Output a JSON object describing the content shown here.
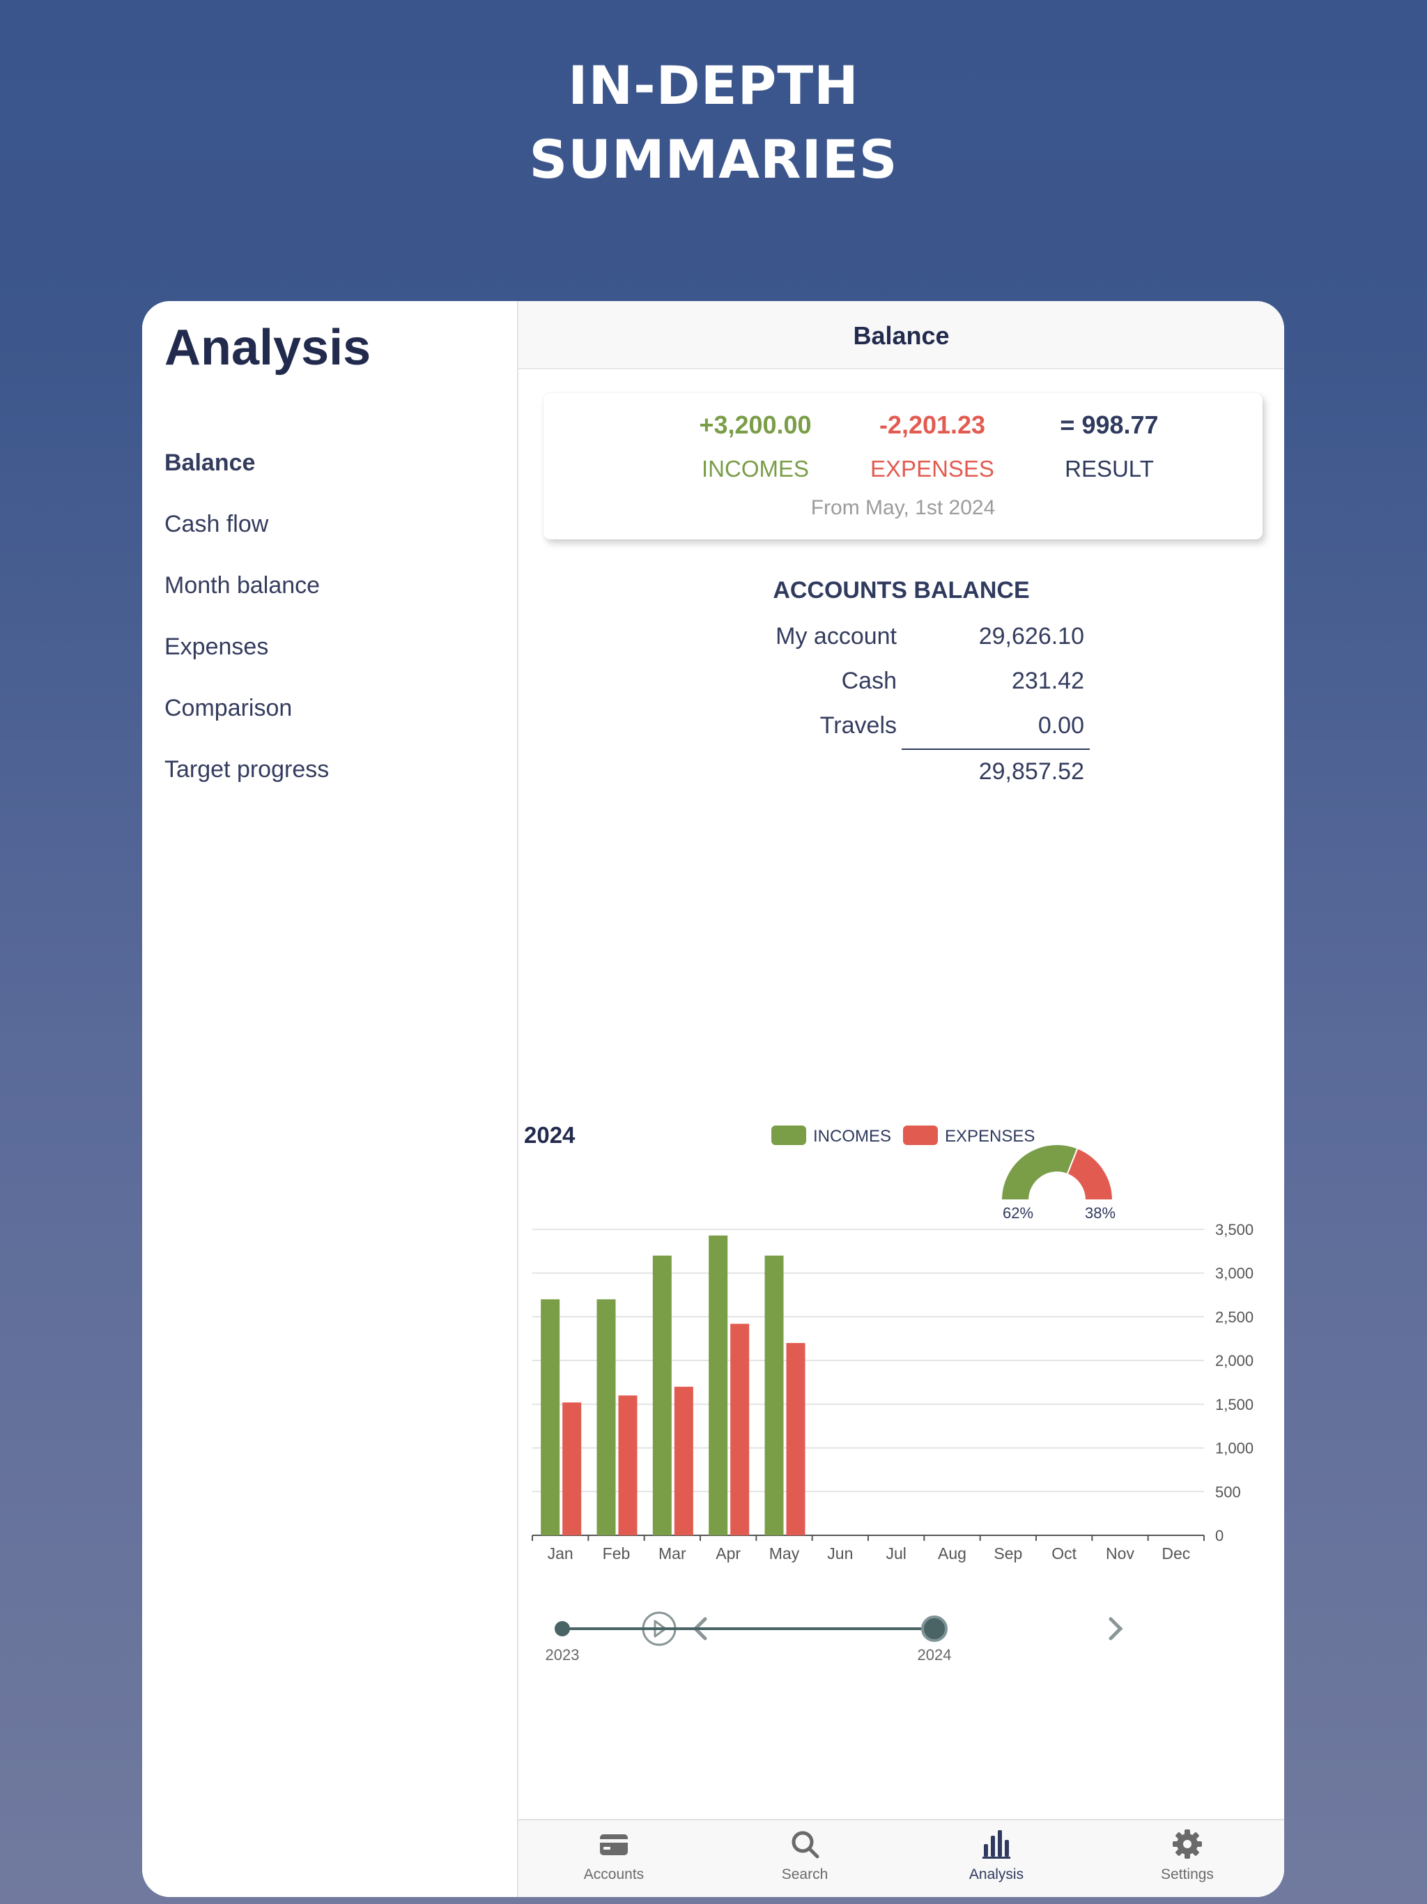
{
  "promo": {
    "line1": "IN-DEPTH",
    "line2": "SUMMARIES"
  },
  "sidebar": {
    "title": "Analysis",
    "items": [
      {
        "label": "Balance",
        "active": true
      },
      {
        "label": "Cash flow"
      },
      {
        "label": "Month balance"
      },
      {
        "label": "Expenses"
      },
      {
        "label": "Comparison"
      },
      {
        "label": "Target progress"
      }
    ]
  },
  "navbar": {
    "title": "Balance"
  },
  "summary": {
    "incomes_value": "+3,200.00",
    "incomes_label": "INCOMES",
    "expenses_value": "-2,201.23",
    "expenses_label": "EXPENSES",
    "result_value": "= 998.77",
    "result_label": "RESULT",
    "from_date": "From May, 1st 2024"
  },
  "accounts": {
    "title": "ACCOUNTS BALANCE",
    "rows": [
      {
        "name": "My account",
        "amount": "29,626.10"
      },
      {
        "name": "Cash",
        "amount": "231.42"
      },
      {
        "name": "Travels",
        "amount": "0.00"
      }
    ],
    "total": "29,857.52"
  },
  "colors": {
    "income": "#7a9d48",
    "expense": "#e25b50",
    "navy": "#2f3a5e",
    "slider": "#4a6466"
  },
  "chart_data": {
    "type": "bar",
    "title": "2024",
    "categories": [
      "Jan",
      "Feb",
      "Mar",
      "Apr",
      "May",
      "Jun",
      "Jul",
      "Aug",
      "Sep",
      "Oct",
      "Nov",
      "Dec"
    ],
    "series": [
      {
        "name": "INCOMES",
        "values": [
          2700,
          2700,
          3200,
          3430,
          3200,
          null,
          null,
          null,
          null,
          null,
          null,
          null
        ]
      },
      {
        "name": "EXPENSES",
        "values": [
          1520,
          1600,
          1700,
          2420,
          2200,
          null,
          null,
          null,
          null,
          null,
          null,
          null
        ]
      }
    ],
    "ylim": [
      0,
      3500
    ],
    "yticks": [
      0,
      500,
      1000,
      1500,
      2000,
      2500,
      3000,
      3500
    ],
    "ytick_labels": [
      "0",
      "500",
      "1,000",
      "1,500",
      "2,000",
      "2,500",
      "3,000",
      "3,500"
    ],
    "y_axis_side": "right",
    "grid": true,
    "legend": "top",
    "gauge": {
      "type": "half-donut",
      "income_pct": 62,
      "expense_pct": 38,
      "income_label": "62%",
      "expense_label": "38%"
    }
  },
  "timeline": {
    "start_label": "2023",
    "end_label": "2024",
    "value": 1.0
  },
  "tabbar": {
    "items": [
      {
        "label": "Accounts",
        "icon": "card-icon"
      },
      {
        "label": "Search",
        "icon": "search-icon"
      },
      {
        "label": "Analysis",
        "icon": "bar-chart-icon",
        "active": true
      },
      {
        "label": "Settings",
        "icon": "gear-icon"
      }
    ]
  }
}
